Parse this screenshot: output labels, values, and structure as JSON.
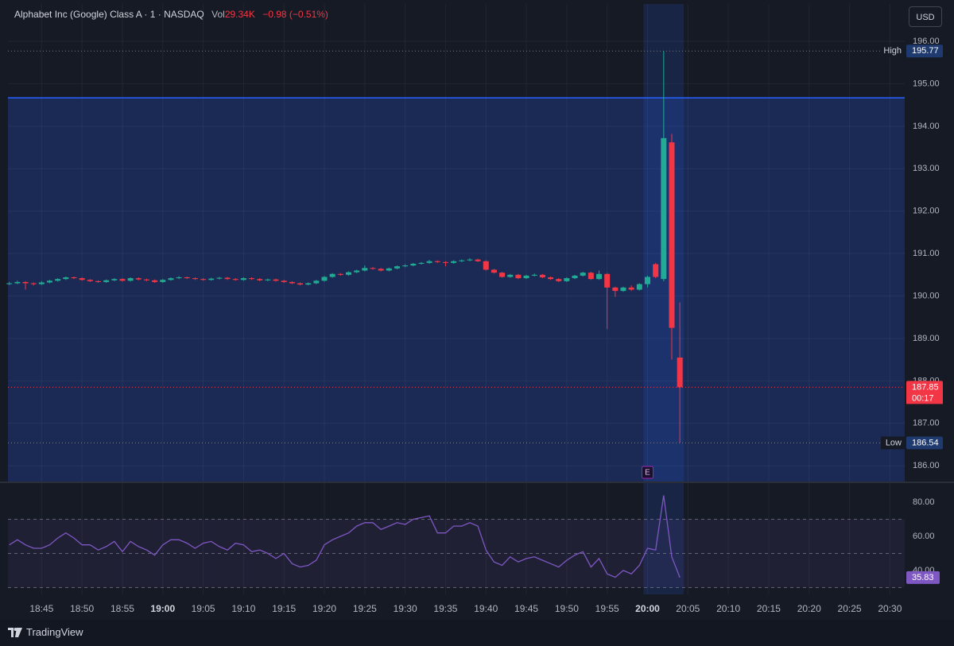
{
  "header": {
    "title": "Alphabet Inc (Google) Class A · 1 · NASDAQ",
    "volume_label": "Vol",
    "volume": "29.34K",
    "change": "−0.98 (−0.51%)",
    "currency": "USD",
    "brand": "TradingView"
  },
  "chart_data": [
    {
      "type": "candlestick",
      "x": [
        "18:41",
        "18:42",
        "18:43",
        "18:44",
        "18:45",
        "18:46",
        "18:47",
        "18:48",
        "18:49",
        "18:50",
        "18:51",
        "18:52",
        "18:53",
        "18:54",
        "18:55",
        "18:56",
        "18:57",
        "18:58",
        "18:59",
        "19:00",
        "19:01",
        "19:02",
        "19:03",
        "19:04",
        "19:05",
        "19:06",
        "19:07",
        "19:08",
        "19:09",
        "19:10",
        "19:11",
        "19:12",
        "19:13",
        "19:14",
        "19:15",
        "19:16",
        "19:17",
        "19:18",
        "19:19",
        "19:20",
        "19:21",
        "19:22",
        "19:23",
        "19:24",
        "19:25",
        "19:26",
        "19:27",
        "19:28",
        "19:29",
        "19:30",
        "19:31",
        "19:32",
        "19:33",
        "19:34",
        "19:35",
        "19:36",
        "19:37",
        "19:38",
        "19:39",
        "19:40",
        "19:41",
        "19:42",
        "19:43",
        "19:44",
        "19:45",
        "19:46",
        "19:47",
        "19:48",
        "19:49",
        "19:50",
        "19:51",
        "19:52",
        "19:53",
        "19:54",
        "19:55",
        "19:56",
        "19:57",
        "19:58",
        "19:59",
        "20:00",
        "20:01",
        "20:02",
        "20:03",
        "20:04"
      ],
      "open": [
        190.28,
        190.3,
        190.33,
        190.3,
        190.28,
        190.32,
        190.36,
        190.4,
        190.44,
        190.42,
        190.38,
        190.35,
        190.33,
        190.37,
        190.4,
        190.36,
        190.42,
        190.39,
        190.37,
        190.33,
        190.38,
        190.42,
        190.44,
        190.42,
        190.4,
        190.38,
        190.41,
        190.43,
        190.4,
        190.38,
        190.42,
        190.4,
        190.37,
        190.39,
        190.36,
        190.33,
        190.3,
        190.27,
        190.3,
        190.36,
        190.45,
        190.52,
        190.5,
        190.56,
        190.6,
        190.66,
        190.64,
        190.6,
        190.65,
        190.7,
        190.72,
        190.76,
        190.78,
        190.82,
        190.8,
        190.78,
        190.82,
        190.84,
        190.86,
        190.82,
        190.62,
        190.55,
        190.45,
        190.5,
        190.42,
        190.48,
        190.5,
        190.44,
        190.4,
        190.35,
        190.42,
        190.48,
        190.55,
        190.4,
        190.52,
        190.2,
        190.12,
        190.2,
        190.15,
        190.28,
        190.75,
        190.4,
        193.62,
        188.55
      ],
      "high": [
        190.33,
        190.36,
        190.35,
        190.32,
        190.35,
        190.38,
        190.42,
        190.46,
        190.46,
        190.44,
        190.4,
        190.37,
        190.39,
        190.42,
        190.42,
        190.44,
        190.44,
        190.41,
        190.39,
        190.4,
        190.44,
        190.47,
        190.46,
        190.44,
        190.42,
        190.43,
        190.45,
        190.45,
        190.42,
        190.44,
        190.44,
        190.42,
        190.41,
        190.41,
        190.38,
        190.35,
        190.32,
        190.32,
        190.38,
        190.47,
        190.54,
        190.54,
        190.58,
        190.62,
        190.72,
        190.68,
        190.66,
        190.67,
        190.72,
        190.75,
        190.78,
        190.8,
        190.85,
        190.84,
        190.82,
        190.84,
        190.86,
        190.89,
        190.88,
        190.84,
        190.64,
        190.57,
        190.52,
        190.52,
        190.5,
        190.53,
        190.52,
        190.46,
        190.42,
        190.44,
        190.5,
        190.57,
        190.57,
        190.6,
        190.54,
        190.22,
        190.22,
        190.25,
        190.3,
        190.48,
        190.78,
        195.77,
        193.82,
        189.85
      ],
      "low": [
        190.26,
        190.28,
        190.15,
        190.25,
        190.26,
        190.3,
        190.34,
        190.38,
        190.4,
        190.36,
        190.33,
        190.31,
        190.31,
        190.35,
        190.34,
        190.34,
        190.37,
        190.35,
        190.31,
        190.31,
        190.36,
        190.4,
        190.4,
        190.38,
        190.36,
        190.36,
        190.39,
        190.38,
        190.36,
        190.36,
        190.38,
        190.35,
        190.35,
        190.34,
        190.31,
        190.28,
        190.25,
        190.25,
        190.28,
        190.34,
        190.43,
        190.48,
        190.48,
        190.54,
        190.58,
        190.62,
        190.58,
        190.58,
        190.63,
        190.68,
        190.7,
        190.74,
        190.76,
        190.78,
        190.7,
        190.76,
        190.8,
        190.82,
        190.8,
        190.6,
        190.53,
        190.43,
        190.43,
        190.4,
        190.4,
        190.46,
        190.42,
        190.38,
        190.33,
        190.33,
        190.4,
        190.46,
        190.38,
        190.38,
        189.22,
        189.98,
        190.1,
        190.12,
        190.13,
        190.2,
        190.42,
        190.35,
        188.5,
        186.54
      ],
      "close": [
        190.3,
        190.33,
        190.3,
        190.28,
        190.32,
        190.36,
        190.4,
        190.44,
        190.42,
        190.38,
        190.35,
        190.33,
        190.37,
        190.4,
        190.36,
        190.42,
        190.39,
        190.37,
        190.33,
        190.38,
        190.42,
        190.44,
        190.42,
        190.4,
        190.38,
        190.41,
        190.43,
        190.4,
        190.38,
        190.42,
        190.4,
        190.37,
        190.39,
        190.36,
        190.33,
        190.3,
        190.27,
        190.3,
        190.36,
        190.45,
        190.52,
        190.5,
        190.56,
        190.6,
        190.66,
        190.64,
        190.6,
        190.65,
        190.7,
        190.72,
        190.76,
        190.78,
        190.82,
        190.8,
        190.78,
        190.82,
        190.84,
        190.86,
        190.82,
        190.62,
        190.55,
        190.45,
        190.5,
        190.42,
        190.48,
        190.5,
        190.44,
        190.4,
        190.35,
        190.42,
        190.48,
        190.55,
        190.4,
        190.52,
        190.2,
        190.12,
        190.2,
        190.15,
        190.28,
        190.45,
        190.45,
        193.72,
        189.25,
        187.85
      ],
      "up_color": "#22ab94",
      "down_color": "#f23645",
      "xlim": [
        "18:40:50",
        "20:31:50"
      ],
      "xticks": [
        "18:45",
        "18:50",
        "18:55",
        "19:00",
        "19:05",
        "19:10",
        "19:15",
        "19:20",
        "19:25",
        "19:30",
        "19:35",
        "19:40",
        "19:45",
        "19:50",
        "19:55",
        "20:00",
        "20:05",
        "20:10",
        "20:15",
        "20:20",
        "20:25",
        "20:30"
      ],
      "ylim": [
        185.63,
        196.88
      ],
      "yticks": [
        {
          "value": 186,
          "label": "186.00"
        },
        {
          "value": 187,
          "label": "187.00"
        },
        {
          "value": 188,
          "label": "188.00"
        },
        {
          "value": 189,
          "label": "189.00"
        },
        {
          "value": 190,
          "label": "190.00"
        },
        {
          "value": 191,
          "label": "191.00"
        },
        {
          "value": 192,
          "label": "192.00"
        },
        {
          "value": 193,
          "label": "193.00"
        },
        {
          "value": 194,
          "label": "194.00"
        },
        {
          "value": 195,
          "label": "195.00"
        },
        {
          "value": 196,
          "label": "196.00"
        }
      ],
      "grid": true,
      "price_line": 194.67,
      "price_line_color": "#2962ff",
      "high_label": "High",
      "low_label": "Low",
      "countdown": "00:17",
      "highlight_range": [
        "20:00",
        "20:04"
      ],
      "events": [
        {
          "x": "20:00",
          "label": "E"
        }
      ]
    },
    {
      "type": "line",
      "color": "#7e57c2",
      "x": [
        "18:41",
        "18:42",
        "18:43",
        "18:44",
        "18:45",
        "18:46",
        "18:47",
        "18:48",
        "18:49",
        "18:50",
        "18:51",
        "18:52",
        "18:53",
        "18:54",
        "18:55",
        "18:56",
        "18:57",
        "18:58",
        "18:59",
        "19:00",
        "19:01",
        "19:02",
        "19:03",
        "19:04",
        "19:05",
        "19:06",
        "19:07",
        "19:08",
        "19:09",
        "19:10",
        "19:11",
        "19:12",
        "19:13",
        "19:14",
        "19:15",
        "19:16",
        "19:17",
        "19:18",
        "19:19",
        "19:20",
        "19:21",
        "19:22",
        "19:23",
        "19:24",
        "19:25",
        "19:26",
        "19:27",
        "19:28",
        "19:29",
        "19:30",
        "19:31",
        "19:32",
        "19:33",
        "19:34",
        "19:35",
        "19:36",
        "19:37",
        "19:38",
        "19:39",
        "19:40",
        "19:41",
        "19:42",
        "19:43",
        "19:44",
        "19:45",
        "19:46",
        "19:47",
        "19:48",
        "19:49",
        "19:50",
        "19:51",
        "19:52",
        "19:53",
        "19:54",
        "19:55",
        "19:56",
        "19:57",
        "19:58",
        "19:59",
        "20:00",
        "20:01",
        "20:02",
        "20:03",
        "20:04"
      ],
      "values": [
        55,
        58,
        55,
        53,
        53,
        55,
        59,
        62,
        59,
        55,
        55,
        52,
        54,
        57,
        51,
        57,
        54,
        52,
        49,
        55,
        58,
        58,
        56,
        53,
        56,
        57,
        54,
        52,
        56,
        55,
        51,
        52,
        50,
        47,
        50,
        44,
        42,
        43,
        46,
        55,
        58,
        60,
        62,
        66,
        68,
        68,
        64,
        66,
        68,
        67,
        70,
        71,
        72,
        62,
        62,
        66,
        66,
        68,
        66,
        52,
        45,
        43,
        48,
        45,
        47,
        48,
        46,
        44,
        42,
        46,
        49,
        51,
        42,
        47,
        38,
        36,
        40,
        38,
        43,
        53,
        52,
        84,
        48,
        35.83
      ],
      "ylim": [
        26,
        91.2
      ],
      "yticks": [
        {
          "value": 40,
          "label": "40.00"
        },
        {
          "value": 60,
          "label": "60.00"
        },
        {
          "value": 80,
          "label": "80.00"
        }
      ],
      "bands": [
        70,
        50,
        30
      ]
    }
  ]
}
